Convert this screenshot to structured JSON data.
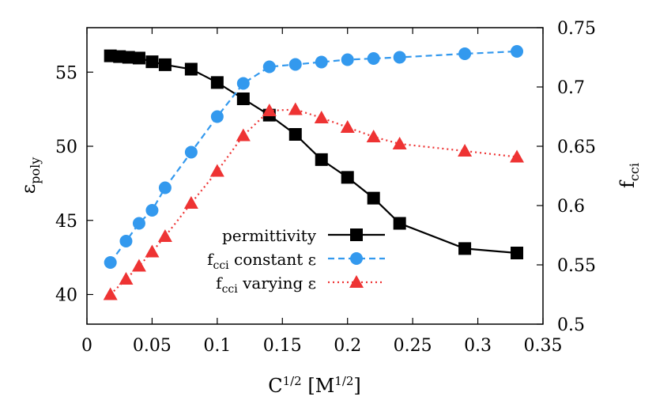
{
  "chart_data": {
    "type": "line",
    "title": "",
    "xlabel": "C",
    "xlabel_sup": "1/2",
    "xlabel_unit_open": " [M",
    "xlabel_unit_sup": "1/2",
    "xlabel_unit_close": "]",
    "ylabel_left": "ε",
    "ylabel_left_sub": "poly",
    "ylabel_right": "f",
    "ylabel_right_sub": "cci",
    "xlim": [
      0,
      0.35
    ],
    "ylim_left": [
      38,
      58
    ],
    "ylim_right": [
      0.5,
      0.75
    ],
    "x_ticks": [
      "0",
      "0.05",
      "0.1",
      "0.15",
      "0.2",
      "0.25",
      "0.3",
      "0.35"
    ],
    "y_left_ticks": [
      "40",
      "45",
      "50",
      "55"
    ],
    "y_right_ticks": [
      "0.5",
      "0.55",
      "0.6",
      "0.65",
      "0.7",
      "0.75"
    ],
    "grid": false,
    "legend_position": "bottom-center",
    "series": [
      {
        "name": "permittivity",
        "axis": "left",
        "color": "#000000",
        "marker": "square",
        "dash": "solid",
        "x": [
          0.018,
          0.025,
          0.032,
          0.04,
          0.05,
          0.06,
          0.08,
          0.1,
          0.12,
          0.14,
          0.16,
          0.18,
          0.2,
          0.22,
          0.24,
          0.29,
          0.33
        ],
        "y": [
          56.1,
          56.05,
          56.0,
          55.95,
          55.7,
          55.5,
          55.2,
          54.3,
          53.2,
          52.1,
          50.8,
          49.1,
          47.9,
          46.5,
          44.8,
          43.1,
          42.8
        ]
      },
      {
        "name": "f",
        "name_sub": "cci",
        "name_rest": " constant ε",
        "axis": "right",
        "color": "#3399ee",
        "marker": "circle",
        "dash": "dashed",
        "x": [
          0.018,
          0.03,
          0.04,
          0.05,
          0.06,
          0.08,
          0.1,
          0.12,
          0.14,
          0.16,
          0.18,
          0.2,
          0.22,
          0.24,
          0.29,
          0.33
        ],
        "y": [
          0.552,
          0.57,
          0.585,
          0.596,
          0.615,
          0.645,
          0.675,
          0.703,
          0.717,
          0.719,
          0.721,
          0.723,
          0.724,
          0.725,
          0.728,
          0.73
        ]
      },
      {
        "name": "f",
        "name_sub": "cci",
        "name_rest": " varying ε",
        "axis": "right",
        "color": "#ee3333",
        "marker": "triangle",
        "dash": "dotted",
        "x": [
          0.018,
          0.03,
          0.04,
          0.05,
          0.06,
          0.08,
          0.1,
          0.12,
          0.14,
          0.16,
          0.18,
          0.2,
          0.22,
          0.24,
          0.29,
          0.33
        ],
        "y": [
          0.525,
          0.538,
          0.549,
          0.561,
          0.574,
          0.602,
          0.629,
          0.659,
          0.68,
          0.681,
          0.674,
          0.666,
          0.658,
          0.652,
          0.646,
          0.641
        ]
      }
    ]
  }
}
